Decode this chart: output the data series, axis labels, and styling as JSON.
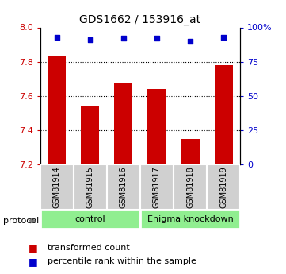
{
  "title": "GDS1662 / 153916_at",
  "categories": [
    "GSM81914",
    "GSM81915",
    "GSM81916",
    "GSM81917",
    "GSM81918",
    "GSM81919"
  ],
  "bar_values": [
    7.83,
    7.54,
    7.68,
    7.64,
    7.35,
    7.78
  ],
  "percentile_values": [
    93,
    91,
    92,
    92,
    90,
    93
  ],
  "ylim_left": [
    7.2,
    8.0
  ],
  "ylim_right": [
    0,
    100
  ],
  "yticks_left": [
    7.2,
    7.4,
    7.6,
    7.8,
    8.0
  ],
  "yticks_right": [
    0,
    25,
    50,
    75,
    100
  ],
  "yticklabels_right": [
    "0",
    "25",
    "50",
    "75",
    "100%"
  ],
  "bar_color": "#cc0000",
  "dot_color": "#0000cc",
  "bar_width": 0.55,
  "grid_color": "black",
  "control_label": "control",
  "knockdown_label": "Enigma knockdown",
  "protocol_label": "protocol",
  "legend_bar_label": "transformed count",
  "legend_dot_label": "percentile rank within the sample",
  "left_tick_color": "#cc0000",
  "right_tick_color": "#0000cc",
  "figsize": [
    3.61,
    3.45
  ],
  "dpi": 100
}
